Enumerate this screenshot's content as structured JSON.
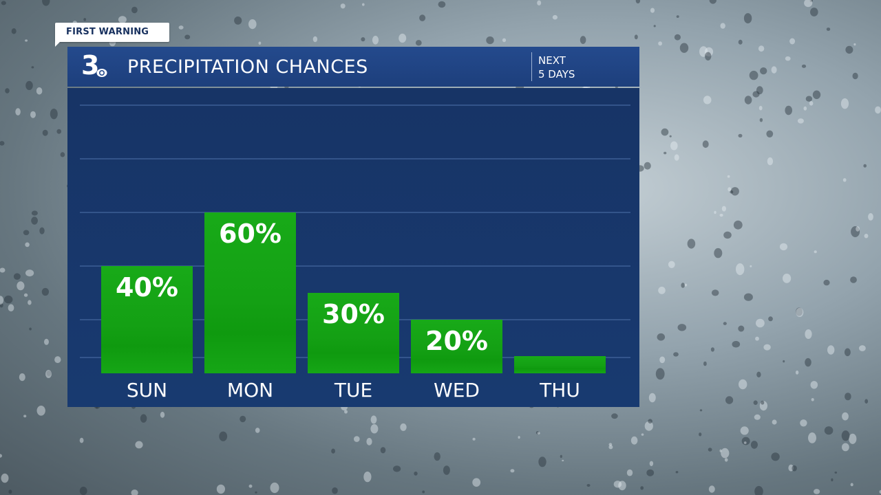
{
  "badge": {
    "label": "FIRST WARNING"
  },
  "header": {
    "logo": "3",
    "logo_icon": "cbs-eye-icon",
    "title": "PRECIPITATION CHANCES",
    "subtitle_line1": "NEXT",
    "subtitle_line2": "5 DAYS"
  },
  "colors": {
    "header_bg": "#244a8d",
    "panel_bg": "#173466",
    "bar_fill": "#14a014",
    "gridline": "#3d5f95",
    "text": "#ffffff"
  },
  "chart_data": {
    "type": "bar",
    "title": "PRECIPITATION CHANCES",
    "categories": [
      "SUN",
      "MON",
      "TUE",
      "WED",
      "THU"
    ],
    "values": [
      40,
      60,
      30,
      20,
      0
    ],
    "value_labels": [
      "40%",
      "60%",
      "30%",
      "20%",
      ""
    ],
    "ylim": [
      0,
      100
    ],
    "grid": true,
    "xlabel": "",
    "ylabel": ""
  }
}
